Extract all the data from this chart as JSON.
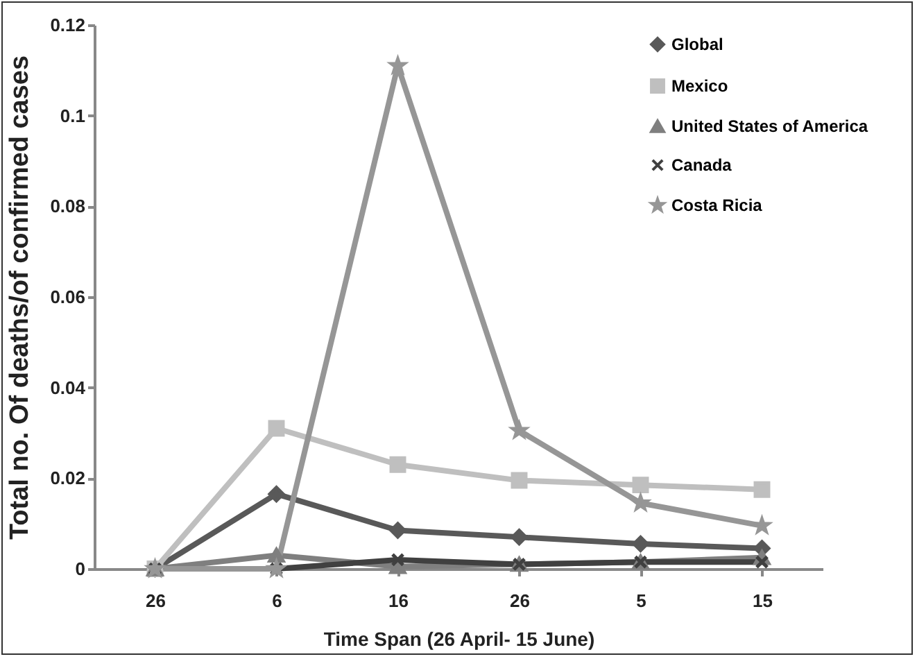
{
  "chart_data": {
    "type": "line",
    "xlabel": "Time Span (26 April- 15 June)",
    "ylabel": "Total no. Of deaths/of confirmed cases",
    "categories": [
      "26",
      "6",
      "16",
      "26",
      "5",
      "15"
    ],
    "series": [
      {
        "name": "Global",
        "color": "#595959",
        "marker": "diamond",
        "values": [
          0,
          0.0165,
          0.0085,
          0.007,
          0.0055,
          0.0045
        ]
      },
      {
        "name": "Mexico",
        "color": "#bfbfbf",
        "marker": "square",
        "values": [
          0,
          0.031,
          0.023,
          0.0195,
          0.0185,
          0.0175
        ]
      },
      {
        "name": "United States of America",
        "color": "#7f7f7f",
        "marker": "triangle",
        "values": [
          0,
          0.003,
          0.0005,
          0.001,
          0.0015,
          0.0025
        ]
      },
      {
        "name": "Canada",
        "color": "#404040",
        "marker": "cross",
        "values": [
          0,
          0,
          0.002,
          0.001,
          0.0015,
          0.0015
        ]
      },
      {
        "name": "Costa Ricia",
        "color": "#969696",
        "marker": "star",
        "values": [
          0,
          0,
          0.111,
          0.0305,
          0.0145,
          0.0095
        ]
      }
    ],
    "ylim": [
      0,
      0.12
    ],
    "yticks": [
      0,
      0.02,
      0.04,
      0.06,
      0.08,
      0.1,
      0.12
    ],
    "grid": false,
    "legend": "top right"
  }
}
